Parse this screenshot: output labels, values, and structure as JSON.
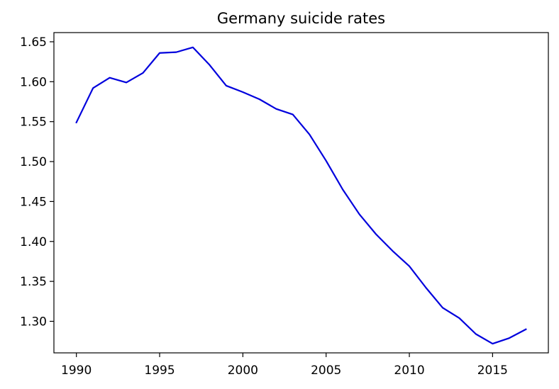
{
  "chart_data": {
    "type": "line",
    "title": "Germany suicide rates",
    "xlabel": "",
    "ylabel": "",
    "xlim": [
      1988.65,
      2018.35
    ],
    "ylim": [
      1.2605,
      1.6615
    ],
    "grid": false,
    "xticks": [
      1990,
      1995,
      2000,
      2005,
      2010,
      2015
    ],
    "xtick_labels": [
      "1990",
      "1995",
      "2000",
      "2005",
      "2010",
      "2015"
    ],
    "yticks": [
      1.3,
      1.35,
      1.4,
      1.45,
      1.5,
      1.55,
      1.6,
      1.65
    ],
    "ytick_labels": [
      "1.30",
      "1.35",
      "1.40",
      "1.45",
      "1.50",
      "1.55",
      "1.60",
      "1.65"
    ],
    "series": [
      {
        "color": "#0000dd",
        "x": [
          1990,
          1991,
          1992,
          1993,
          1994,
          1995,
          1996,
          1997,
          1998,
          1999,
          2000,
          2001,
          2002,
          2003,
          2004,
          2005,
          2006,
          2007,
          2008,
          2009,
          2010,
          2011,
          2012,
          2013,
          2014,
          2015,
          2016,
          2017
        ],
        "values": [
          1.549,
          1.592,
          1.605,
          1.599,
          1.611,
          1.636,
          1.637,
          1.643,
          1.621,
          1.595,
          1.587,
          1.578,
          1.566,
          1.559,
          1.534,
          1.501,
          1.465,
          1.434,
          1.409,
          1.388,
          1.369,
          1.342,
          1.317,
          1.304,
          1.284,
          1.272,
          1.279,
          1.29
        ]
      }
    ]
  }
}
